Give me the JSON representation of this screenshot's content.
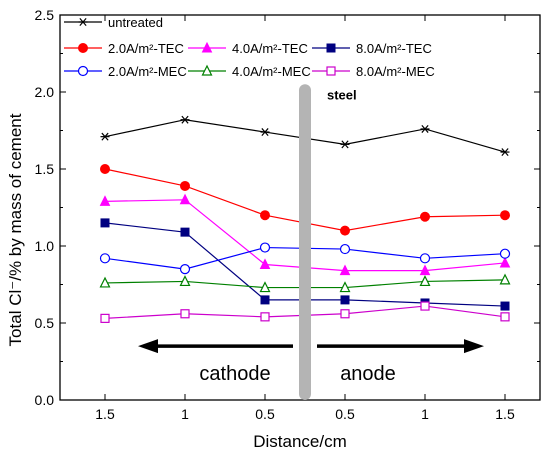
{
  "chart_data": {
    "type": "line",
    "xlabel": "Distance/cm",
    "ylabel": "Total Cl⁻/% by mass of cement",
    "ylim": [
      0.0,
      2.5
    ],
    "yticks": [
      "0.0",
      "0.5",
      "1.0",
      "1.5",
      "2.0",
      "2.5"
    ],
    "categories": [
      "1.5",
      "1",
      "0.5",
      "0.5",
      "1",
      "1.5"
    ],
    "legend_position": "top",
    "series": [
      {
        "name": "untreated",
        "color": "#000000",
        "marker": "asterisk",
        "values": [
          1.71,
          1.82,
          1.74,
          1.66,
          1.76,
          1.61
        ]
      },
      {
        "name": "2.0A/m²-TEC",
        "color": "#ff0000",
        "marker": "filled-circle",
        "values": [
          1.5,
          1.39,
          1.2,
          1.1,
          1.19,
          1.2
        ]
      },
      {
        "name": "4.0A/m²-TEC",
        "color": "#ff00ff",
        "marker": "filled-triangle",
        "values": [
          1.29,
          1.3,
          0.88,
          0.84,
          0.84,
          0.89
        ]
      },
      {
        "name": "8.0A/m²-TEC",
        "color": "#000080",
        "marker": "filled-square",
        "values": [
          1.15,
          1.09,
          0.65,
          0.65,
          0.63,
          0.61
        ]
      },
      {
        "name": "2.0A/m²-MEC",
        "color": "#0000ff",
        "marker": "open-circle",
        "values": [
          0.92,
          0.85,
          0.99,
          0.98,
          0.92,
          0.95
        ]
      },
      {
        "name": "4.0A/m²-MEC",
        "color": "#008000",
        "marker": "open-triangle",
        "values": [
          0.76,
          0.77,
          0.73,
          0.73,
          0.77,
          0.78
        ]
      },
      {
        "name": "8.0A/m²-MEC",
        "color": "#cc00cc",
        "marker": "open-square",
        "values": [
          0.53,
          0.56,
          0.54,
          0.56,
          0.61,
          0.54
        ]
      }
    ],
    "annotations": {
      "steel": "steel",
      "cathode": "cathode",
      "anode": "anode"
    }
  }
}
